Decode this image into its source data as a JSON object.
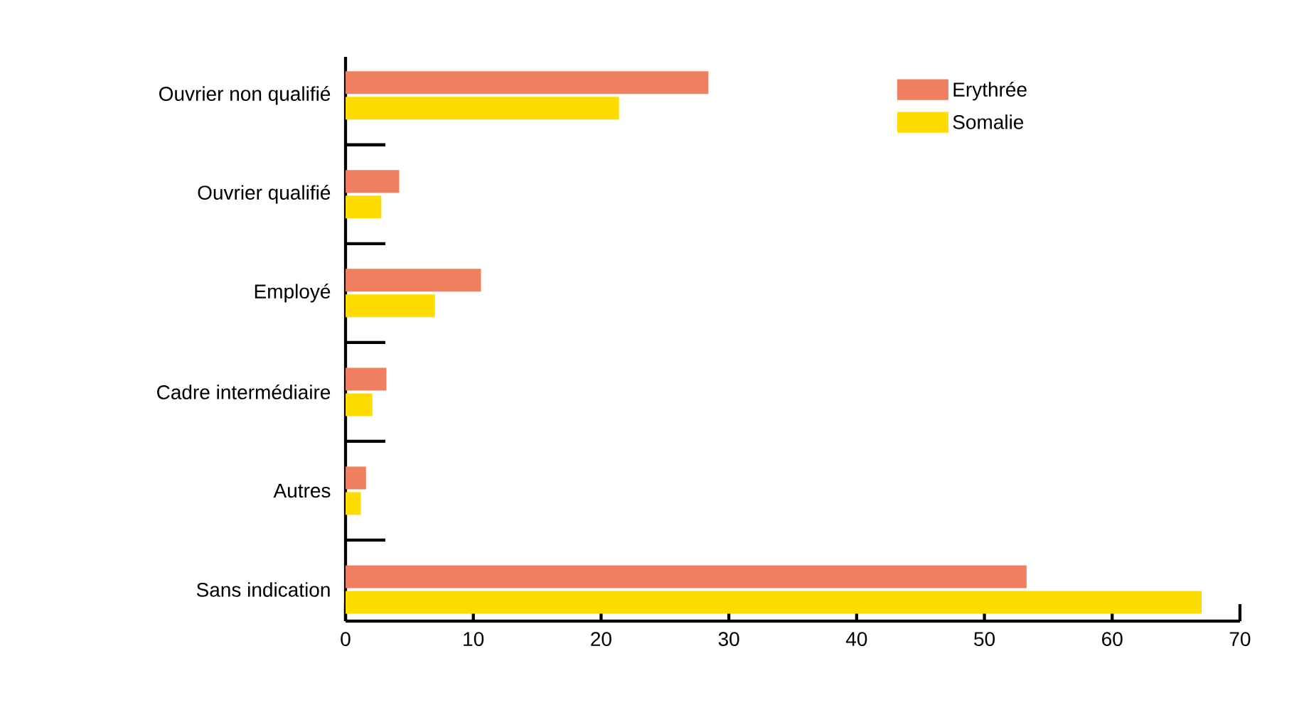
{
  "chart_data": {
    "type": "bar",
    "orientation": "horizontal",
    "categories": [
      "Ouvrier non qualifié",
      "Ouvrier qualifié",
      "Employé",
      "Cadre intermédiaire",
      "Autres",
      "Sans indication"
    ],
    "series": [
      {
        "name": "Erythrée",
        "color": "#ef7f5f",
        "values": [
          28.4,
          4.2,
          10.6,
          3.2,
          1.6,
          53.3
        ]
      },
      {
        "name": "Somalie",
        "color": "#ffdc00",
        "values": [
          21.4,
          2.8,
          7.0,
          2.1,
          1.2,
          67.0
        ]
      }
    ],
    "xlim": [
      0,
      70
    ],
    "xticks": [
      0,
      10,
      20,
      30,
      40,
      50,
      60,
      70
    ],
    "legend": "top right"
  }
}
